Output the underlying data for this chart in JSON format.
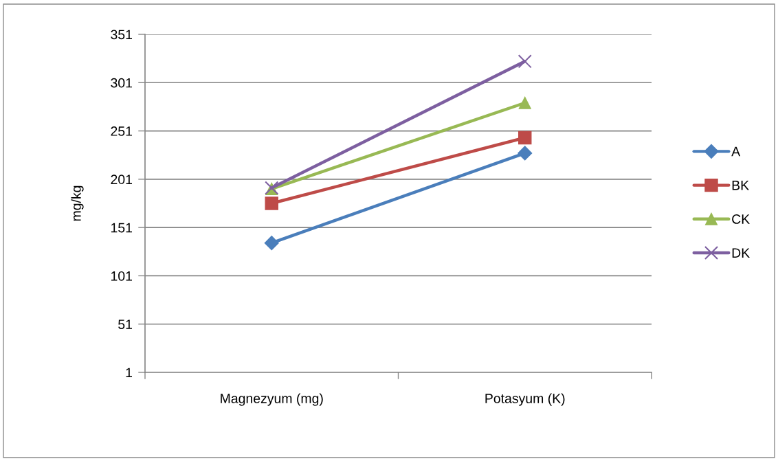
{
  "chart_data": {
    "type": "line",
    "ylabel": "mg/kg",
    "categories": [
      "Magnezyum (mg)",
      "Potasyum (K)"
    ],
    "series": [
      {
        "name": "A",
        "color": "#4a7ebb",
        "marker": "diamond",
        "values": [
          135,
          228
        ]
      },
      {
        "name": "BK",
        "color": "#be4b48",
        "marker": "square",
        "values": [
          176,
          244
        ]
      },
      {
        "name": "CK",
        "color": "#98b954",
        "marker": "triangle",
        "values": [
          191,
          280
        ]
      },
      {
        "name": "DK",
        "color": "#7d5fa0",
        "marker": "cross",
        "values": [
          192,
          323
        ]
      }
    ],
    "ylim": [
      1,
      351
    ],
    "yticks": [
      1,
      51,
      101,
      151,
      201,
      251,
      301,
      351
    ],
    "grid": "y",
    "legend": "right",
    "line_style": "solid"
  }
}
